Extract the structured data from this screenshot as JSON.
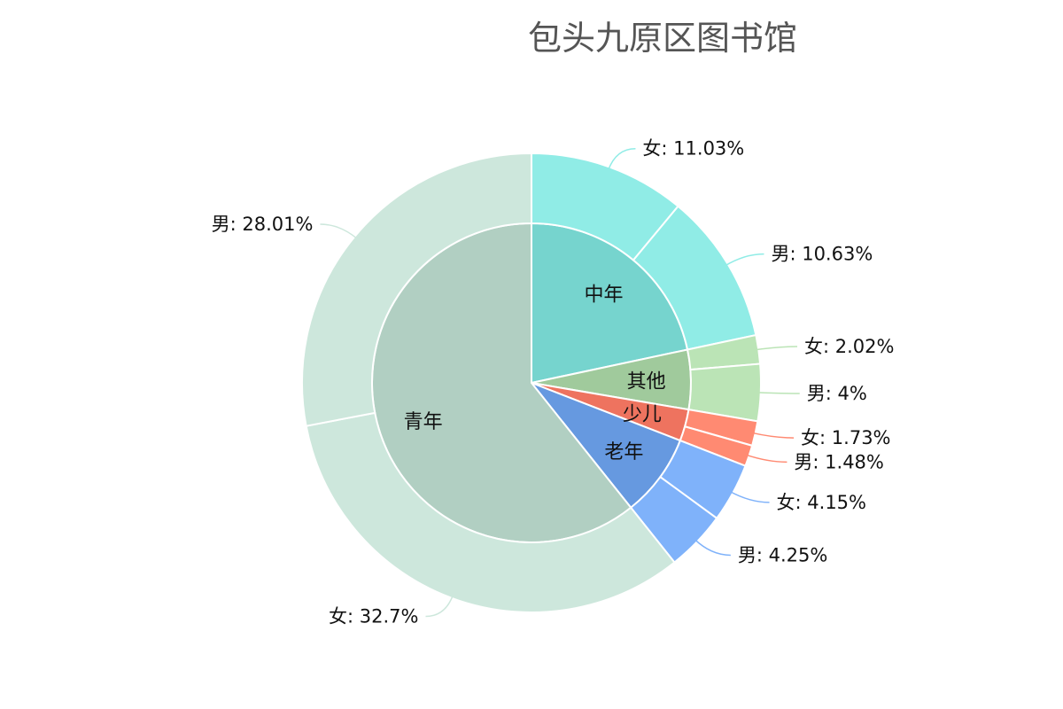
{
  "chart_data": {
    "type": "pie",
    "title": "包头九原区图书馆",
    "inner": [
      {
        "name": "中年",
        "value": 21.66,
        "color": "#76D4CE"
      },
      {
        "name": "其他",
        "value": 6.02,
        "color": "#A0CA9C"
      },
      {
        "name": "少儿",
        "value": 3.21,
        "color": "#EE735F"
      },
      {
        "name": "老年",
        "value": 8.4,
        "color": "#6699E0"
      },
      {
        "name": "青年",
        "value": 60.71,
        "color": "#B1CFC2"
      }
    ],
    "outer": [
      {
        "group": "中年",
        "name": "女",
        "value": 11.03,
        "label": "女: 11.03%",
        "color": "#90ECE6"
      },
      {
        "group": "中年",
        "name": "男",
        "value": 10.63,
        "label": "男: 10.63%",
        "color": "#90ECE6"
      },
      {
        "group": "其他",
        "name": "女",
        "value": 2.02,
        "label": "女: 2.02%",
        "color": "#BBE4B6"
      },
      {
        "group": "其他",
        "name": "男",
        "value": 4,
        "label": "男: 4%",
        "color": "#BBE4B6"
      },
      {
        "group": "少儿",
        "name": "女",
        "value": 1.73,
        "label": "女: 1.73%",
        "color": "#FF8A72"
      },
      {
        "group": "少儿",
        "name": "男",
        "value": 1.48,
        "label": "男: 1.48%",
        "color": "#FF8A72"
      },
      {
        "group": "老年",
        "name": "女",
        "value": 4.15,
        "label": "女: 4.15%",
        "color": "#7FB2FA"
      },
      {
        "group": "老年",
        "name": "男",
        "value": 4.25,
        "label": "男: 4.25%",
        "color": "#7FB2FA"
      },
      {
        "group": "青年",
        "name": "女",
        "value": 32.7,
        "label": "女: 32.7%",
        "color": "#CDE7DC"
      },
      {
        "group": "青年",
        "name": "男",
        "value": 28.01,
        "label": "男: 28.01%",
        "color": "#CDE7DC"
      }
    ]
  }
}
